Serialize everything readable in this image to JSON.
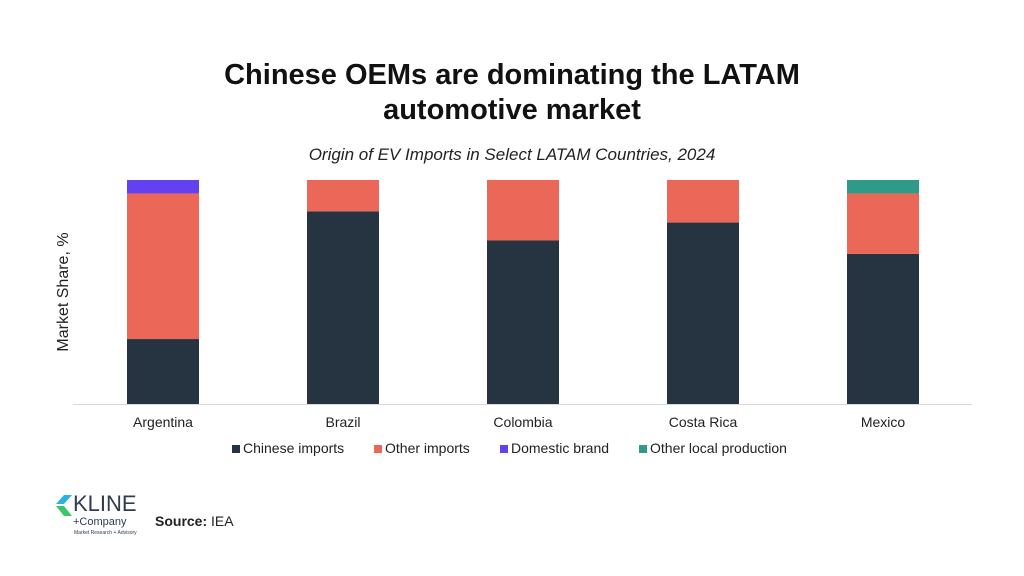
{
  "header": {
    "title_line1": "Chinese OEMs are dominating the LATAM",
    "title_line2": "automotive market",
    "subtitle": "Origin of EV Imports in Select LATAM Countries, 2024"
  },
  "chart_data": {
    "type": "bar",
    "stacked": true,
    "ylabel": "Market Share, %",
    "ylim": [
      0,
      100
    ],
    "grid": false,
    "legend_position": "bottom",
    "categories": [
      "Argentina",
      "Brazil",
      "Colombia",
      "Costa Rica",
      "Mexico"
    ],
    "series": [
      {
        "name": "Chinese imports",
        "color": "#263341",
        "values": [
          29,
          86,
          73,
          81,
          67
        ]
      },
      {
        "name": "Other imports",
        "color": "#eb6757",
        "values": [
          65,
          14,
          27,
          19,
          27
        ]
      },
      {
        "name": "Domestic brand",
        "color": "#6241f0",
        "values": [
          6,
          0,
          0,
          0,
          0
        ]
      },
      {
        "name": "Other local production",
        "color": "#2f9a87",
        "values": [
          0,
          0,
          0,
          0,
          6
        ]
      }
    ]
  },
  "footer": {
    "source_label": "Source:",
    "source_value": "IEA",
    "logo_text": "KLINE",
    "logo_sub": "+Company",
    "logo_tag": "Market Research + Advisory"
  }
}
